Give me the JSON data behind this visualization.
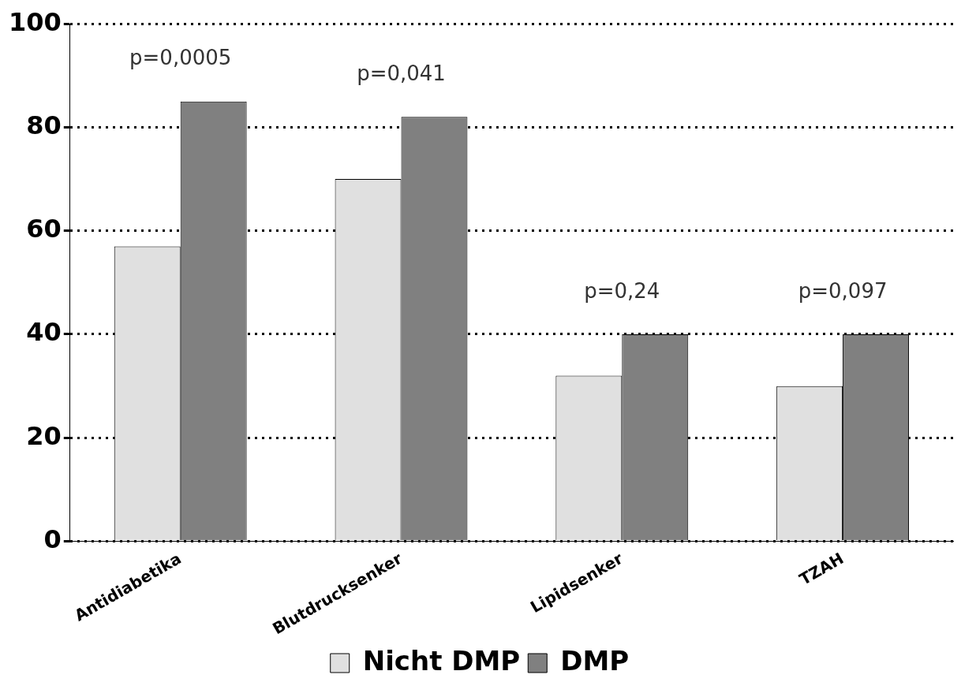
{
  "chart_data": {
    "type": "bar",
    "categories": [
      "Antidiabetika",
      "Blutdrucksenker",
      "Lipidsenker",
      "TZAH"
    ],
    "series": [
      {
        "name": "Nicht DMP",
        "color": "#e0e0e0",
        "values": [
          57,
          70,
          32,
          30
        ]
      },
      {
        "name": "DMP",
        "color": "#808080",
        "values": [
          85,
          82,
          40,
          40
        ]
      }
    ],
    "ylim": [
      0,
      100
    ],
    "yticks": [
      0,
      20,
      40,
      60,
      80,
      100
    ],
    "grid": "y",
    "legend": "bottom",
    "annotations": [
      "p=0,0005",
      "p=0,041",
      "p=0,24",
      "p=0,097"
    ]
  }
}
